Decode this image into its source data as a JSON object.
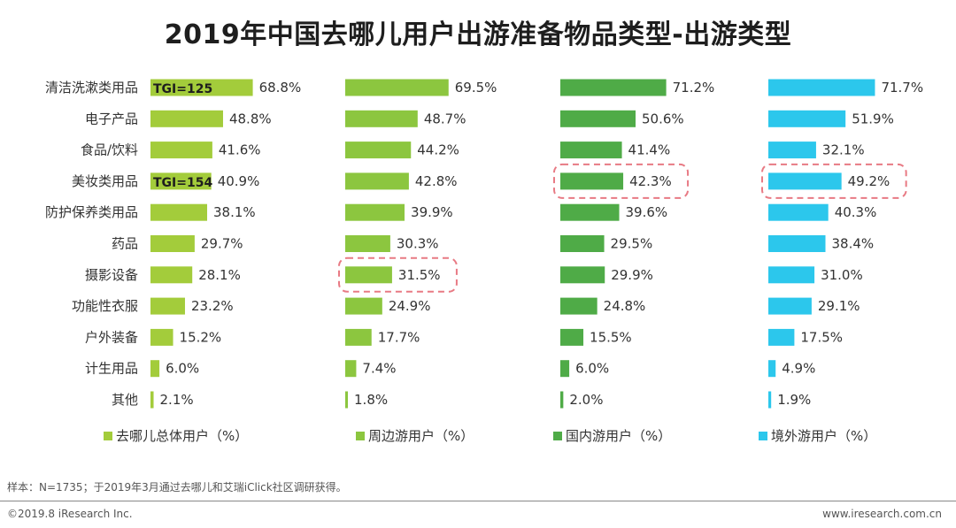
{
  "title": "2019年中国去哪儿用户出游准备物品类型-出游类型",
  "footnote": "样本：N=1735；于2019年3月通过去哪儿和艾瑞iClick社区调研获得。",
  "copyright": "©2019.8 iResearch Inc.",
  "website": "www.iresearch.com.cn",
  "chart_data": {
    "type": "bar",
    "orientation": "horizontal",
    "title": "2019年中国去哪儿用户出游准备物品类型-出游类型",
    "categories": [
      "清洁洗漱类用品",
      "电子产品",
      "食品/饮料",
      "美妆类用品",
      "防护保养类用品",
      "药品",
      "摄影设备",
      "功能性衣服",
      "户外装备",
      "计生用品",
      "其他"
    ],
    "value_suffix": "%",
    "xlim": [
      0,
      100
    ],
    "series": [
      {
        "name": "去哪儿总体用户（%）",
        "color": "#a3cc3b",
        "values": [
          68.8,
          48.8,
          41.6,
          40.9,
          38.1,
          29.7,
          28.1,
          23.2,
          15.2,
          6.0,
          2.1
        ],
        "annotations": [
          {
            "category_index": 0,
            "text": "TGI=125"
          },
          {
            "category_index": 3,
            "text": "TGI=154"
          }
        ],
        "highlights": []
      },
      {
        "name": "周边游用户（%）",
        "color": "#8cc63f",
        "values": [
          69.5,
          48.7,
          44.2,
          42.8,
          39.9,
          30.3,
          31.5,
          24.9,
          17.7,
          7.4,
          1.8
        ],
        "annotations": [],
        "highlights": [
          6
        ]
      },
      {
        "name": "国内游用户（%）",
        "color": "#4fab47",
        "values": [
          71.2,
          50.6,
          41.4,
          42.3,
          39.6,
          29.5,
          29.9,
          24.8,
          15.5,
          6.0,
          2.0
        ],
        "annotations": [],
        "highlights": [
          3
        ]
      },
      {
        "name": "境外游用户（%）",
        "color": "#2cc7ec",
        "values": [
          71.7,
          51.9,
          32.1,
          49.2,
          40.3,
          38.4,
          31.0,
          29.1,
          17.5,
          4.9,
          1.9
        ],
        "annotations": [],
        "highlights": [
          3
        ]
      }
    ],
    "highlight_color": "#e87a84",
    "legend_position": "bottom"
  }
}
